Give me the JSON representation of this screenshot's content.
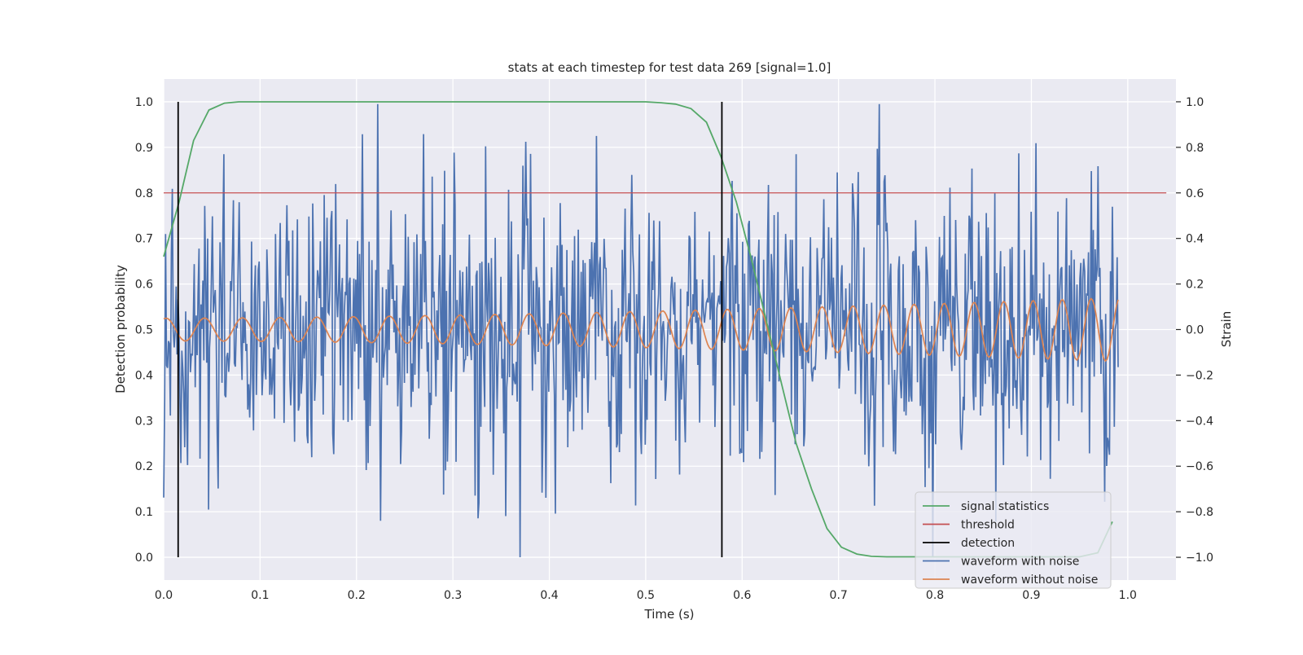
{
  "chart_data": {
    "type": "line",
    "title": "stats at each timestep for test data 269 [signal=1.0]",
    "xlabel": "Time (s)",
    "ylabel_left": "Detection probability",
    "ylabel_right": "Strain",
    "xlim": [
      0.0,
      1.05
    ],
    "ylim_left": [
      -0.05,
      1.05
    ],
    "ylim_right": [
      -1.1,
      1.1
    ],
    "x_ticks": [
      "0.0",
      "0.1",
      "0.2",
      "0.3",
      "0.4",
      "0.5",
      "0.6",
      "0.7",
      "0.8",
      "0.9",
      "1.0"
    ],
    "y_ticks_left": [
      "0.0",
      "0.1",
      "0.2",
      "0.3",
      "0.4",
      "0.5",
      "0.6",
      "0.7",
      "0.8",
      "0.9",
      "1.0"
    ],
    "y_ticks_right": [
      "−1.0",
      "−0.8",
      "−0.6",
      "−0.4",
      "−0.2",
      "0.0",
      "0.2",
      "0.4",
      "0.6",
      "0.8",
      "1.0"
    ],
    "grid": true,
    "legend_position": "lower-right",
    "series": [
      {
        "name": "signal statistics",
        "axis": "left",
        "color": "#55a868",
        "x": [
          0.0,
          0.016,
          0.031,
          0.047,
          0.063,
          0.078,
          0.094,
          0.5,
          0.516,
          0.531,
          0.547,
          0.563,
          0.578,
          0.594,
          0.609,
          0.625,
          0.641,
          0.656,
          0.672,
          0.688,
          0.703,
          0.719,
          0.734,
          0.75,
          0.766,
          0.95,
          0.969,
          0.984
        ],
        "y": [
          0.66,
          0.78,
          0.915,
          0.982,
          0.997,
          1.0,
          1.0,
          1.0,
          0.998,
          0.995,
          0.985,
          0.955,
          0.88,
          0.78,
          0.66,
          0.52,
          0.38,
          0.25,
          0.15,
          0.063,
          0.022,
          0.007,
          0.002,
          0.001,
          0.001,
          0.001,
          0.01,
          0.078
        ]
      },
      {
        "name": "threshold",
        "axis": "left",
        "color": "#c44e52",
        "x": [
          0.0,
          1.04
        ],
        "y": [
          0.8,
          0.8
        ]
      },
      {
        "name": "detection",
        "axis": "left",
        "color": "#000000",
        "x_positions": [
          0.015,
          0.579
        ],
        "y_range": [
          0.0,
          1.0
        ]
      },
      {
        "name": "waveform with noise",
        "axis": "right",
        "color": "#4c72b0",
        "sample_count": 1000,
        "approx_amplitude": 0.3,
        "notable_peaks": [
          [
            0.222,
            0.99
          ],
          [
            0.449,
            0.85
          ],
          [
            0.37,
            -1.0
          ],
          [
            0.062,
            0.77
          ],
          [
            0.656,
            0.77
          ]
        ]
      },
      {
        "name": "waveform without noise",
        "axis": "right",
        "color": "#dd8452",
        "x_range": [
          0.0,
          0.99
        ],
        "amplitude_start": 0.05,
        "amplitude_end": 0.14,
        "cycles": 29
      }
    ]
  }
}
